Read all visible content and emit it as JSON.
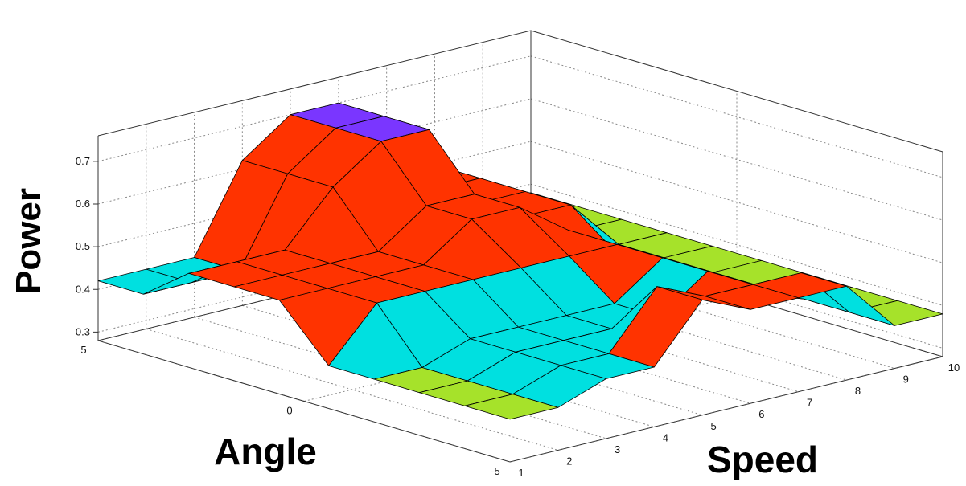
{
  "chart_data": {
    "type": "surface",
    "zlabel": "Power",
    "ylabel": "Angle",
    "xlabel": "Speed",
    "z_ticks": [
      "0.3",
      "0.4",
      "0.5",
      "0.6",
      "0.7"
    ],
    "angle_ticks": [
      "5",
      "0",
      "-5"
    ],
    "speed_ticks": [
      "1",
      "2",
      "3",
      "4",
      "5",
      "6",
      "7",
      "8",
      "9",
      "10"
    ],
    "zlim": [
      0.28,
      0.76
    ],
    "angle_range": [
      -5,
      5
    ],
    "speed_range": [
      1,
      10
    ],
    "grid": true,
    "colors": {
      "low": "#a6e22a",
      "mid": "#00e0e0",
      "high": "#ff3300",
      "top": "#7a36ff"
    },
    "surface": {
      "speeds": [
        1,
        2,
        3,
        4,
        5,
        6,
        7,
        8,
        9,
        10
      ],
      "angles": [
        -5,
        -3.9,
        -2.8,
        -1.7,
        -0.6,
        0.6,
        1.7,
        2.8,
        3.9,
        5
      ],
      "power": [
        [
          0.38,
          0.38,
          0.38,
          0.38,
          0.38,
          0.5,
          0.5,
          0.5,
          0.42,
          0.42
        ],
        [
          0.38,
          0.38,
          0.38,
          0.38,
          0.5,
          0.5,
          0.5,
          0.5,
          0.42,
          0.42
        ],
        [
          0.42,
          0.42,
          0.42,
          0.42,
          0.5,
          0.5,
          0.5,
          0.5,
          0.42,
          0.42
        ],
        [
          0.42,
          0.42,
          0.42,
          0.42,
          0.5,
          0.5,
          0.5,
          0.62,
          0.62,
          0.62
        ],
        [
          0.55,
          0.55,
          0.42,
          0.42,
          0.5,
          0.58,
          0.58,
          0.7,
          0.7,
          0.7
        ],
        [
          0.5,
          0.5,
          0.42,
          0.42,
          0.5,
          0.58,
          0.58,
          0.7,
          0.7,
          0.7
        ],
        [
          0.5,
          0.5,
          0.5,
          0.5,
          0.5,
          0.5,
          0.5,
          0.5,
          0.5,
          0.5
        ],
        [
          0.5,
          0.5,
          0.42,
          0.42,
          0.42,
          0.42,
          0.5,
          0.5,
          0.5,
          0.5
        ],
        [
          0.38,
          0.38,
          0.38,
          0.38,
          0.38,
          0.38,
          0.38,
          0.38,
          0.38,
          0.38
        ],
        [
          0.38,
          0.38,
          0.38,
          0.38,
          0.38,
          0.38,
          0.38,
          0.38,
          0.38,
          0.38
        ]
      ]
    }
  }
}
